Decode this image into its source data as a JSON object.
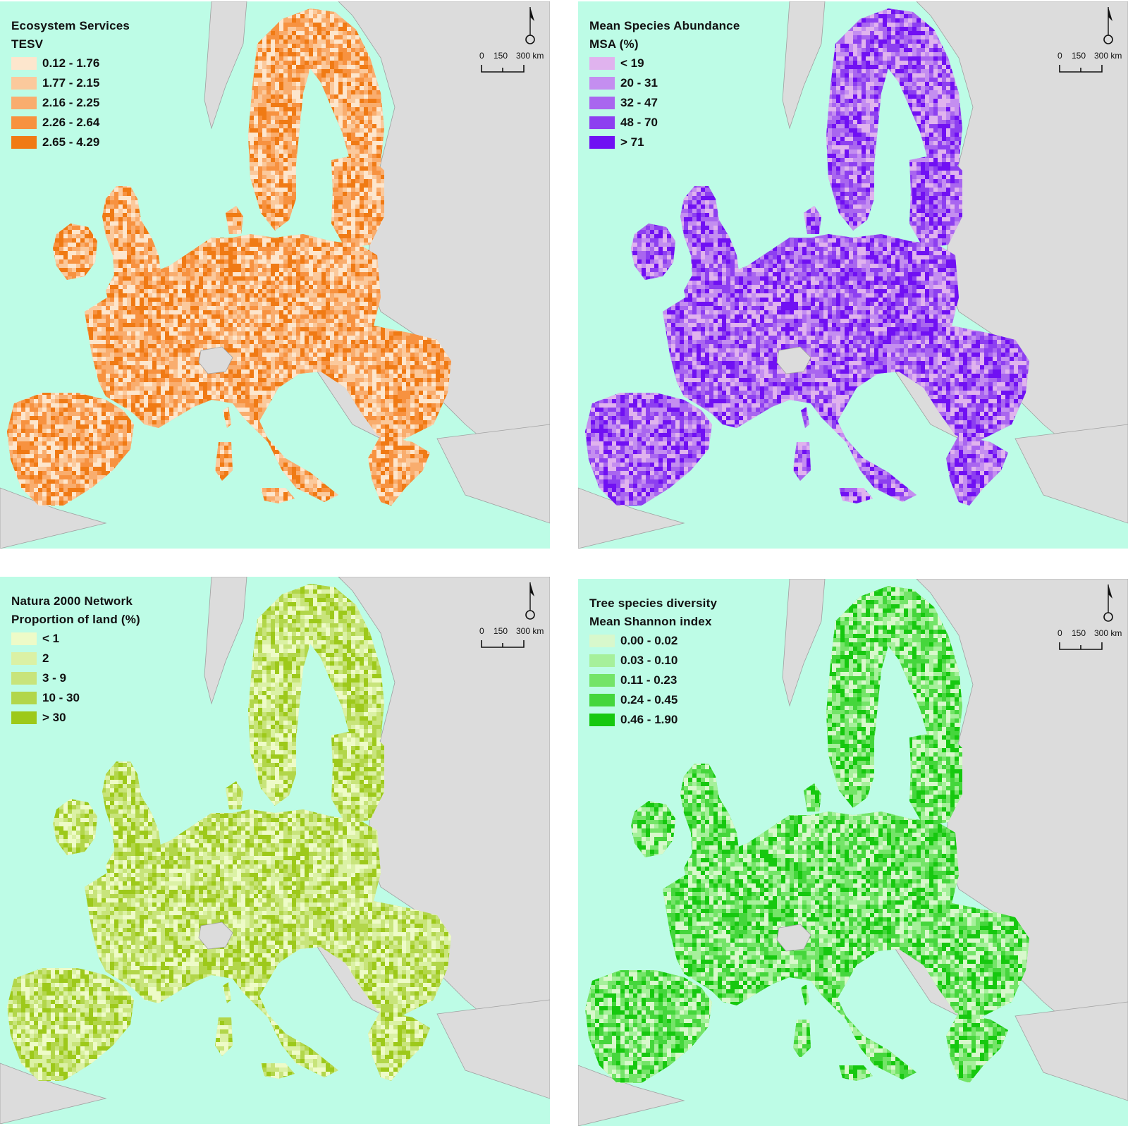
{
  "colors": {
    "sea": "#bdfce6",
    "land_outside": "#dcdcdc",
    "border": "#a0a0a0"
  },
  "scale": {
    "labels": [
      "0",
      "150",
      "300 km"
    ]
  },
  "panels": [
    {
      "title": "Ecosystem Services",
      "subtitle": "TESV",
      "legend": [
        {
          "label": "0.12 - 1.76",
          "color": "#fde6cd"
        },
        {
          "label": "1.77 - 2.15",
          "color": "#fbc99c"
        },
        {
          "label": "2.16 - 2.25",
          "color": "#f9ad6e"
        },
        {
          "label": "2.26 - 2.64",
          "color": "#f79240"
        },
        {
          "label": "2.65 - 4.29",
          "color": "#f07a14"
        }
      ]
    },
    {
      "title": "Mean Species Abundance",
      "subtitle": "MSA (%)",
      "legend": [
        {
          "label": "< 19",
          "color": "#e0b3ee"
        },
        {
          "label": "20 - 31",
          "color": "#c48ef0"
        },
        {
          "label": "32 - 47",
          "color": "#a966ef"
        },
        {
          "label": "48 - 70",
          "color": "#8d3ff0"
        },
        {
          "label": "> 71",
          "color": "#7010f3"
        }
      ]
    },
    {
      "title": "Natura 2000 Network",
      "subtitle": "Proportion of land (%)",
      "legend": [
        {
          "label": "< 1",
          "color": "#eefbc8"
        },
        {
          "label": "2",
          "color": "#dbf1a5"
        },
        {
          "label": "3 - 9",
          "color": "#c8e47b"
        },
        {
          "label": "10 - 30",
          "color": "#b2d64a"
        },
        {
          "label": "> 30",
          "color": "#9dc91a"
        }
      ]
    },
    {
      "title": "Tree species diversity",
      "subtitle": "Mean Shannon index",
      "legend": [
        {
          "label": "0.00 - 0.02",
          "color": "#d8f8cc"
        },
        {
          "label": "0.03 - 0.10",
          "color": "#a6f09b"
        },
        {
          "label": "0.11 - 0.23",
          "color": "#74e468"
        },
        {
          "label": "0.24 - 0.45",
          "color": "#45d63c"
        },
        {
          "label": "0.46 - 1.90",
          "color": "#16c80f"
        }
      ]
    }
  ]
}
